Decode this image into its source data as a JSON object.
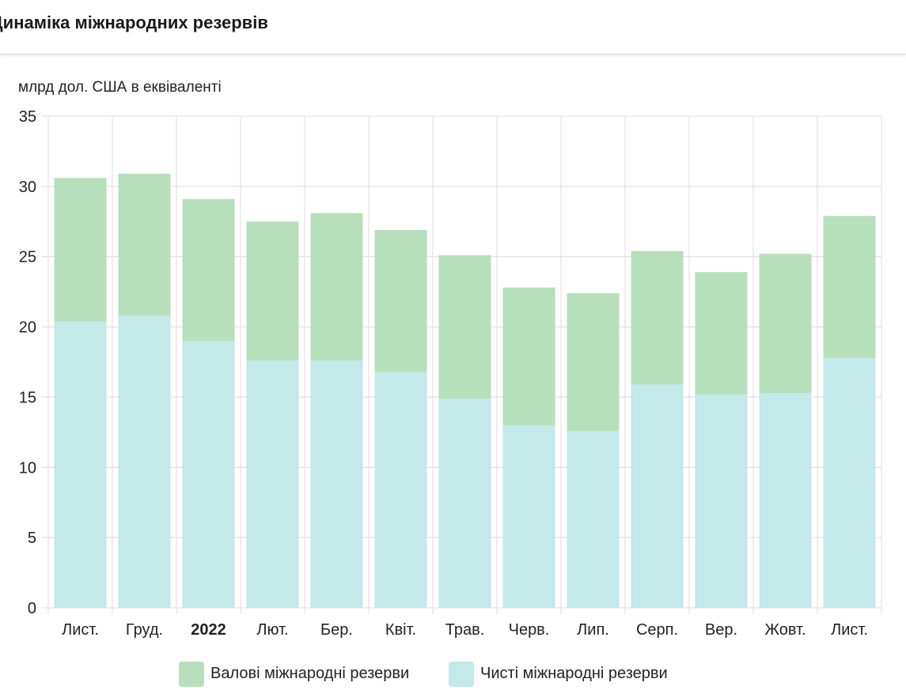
{
  "header": {
    "title": "Динаміка міжнародних резервів"
  },
  "chart_data": {
    "type": "bar",
    "stacked": false,
    "ylabel": "млрд дол. США в еквіваленті",
    "ylim": [
      0,
      35
    ],
    "yticks": [
      0,
      5,
      10,
      15,
      20,
      25,
      30,
      35
    ],
    "grid": true,
    "legend_position": "bottom",
    "categories": [
      "Лист.",
      "Груд.",
      "2022",
      "Лют.",
      "Бер.",
      "Квіт.",
      "Трав.",
      "Черв.",
      "Лип.",
      "Серп.",
      "Вер.",
      "Жовт.",
      "Лист."
    ],
    "bold_categories": [
      "2022"
    ],
    "series": [
      {
        "name": "Валові міжнародні резерви",
        "color": "#b7dfbb",
        "values": [
          30.6,
          30.9,
          29.1,
          27.5,
          28.1,
          26.9,
          25.1,
          22.8,
          22.4,
          25.4,
          23.9,
          25.2,
          27.9
        ]
      },
      {
        "name": "Чисті міжнародні резерви",
        "color": "#c3e9e9",
        "values": [
          20.4,
          20.8,
          19.0,
          17.6,
          17.6,
          16.8,
          14.9,
          13.0,
          12.6,
          15.9,
          15.2,
          15.3,
          17.8
        ]
      }
    ]
  }
}
